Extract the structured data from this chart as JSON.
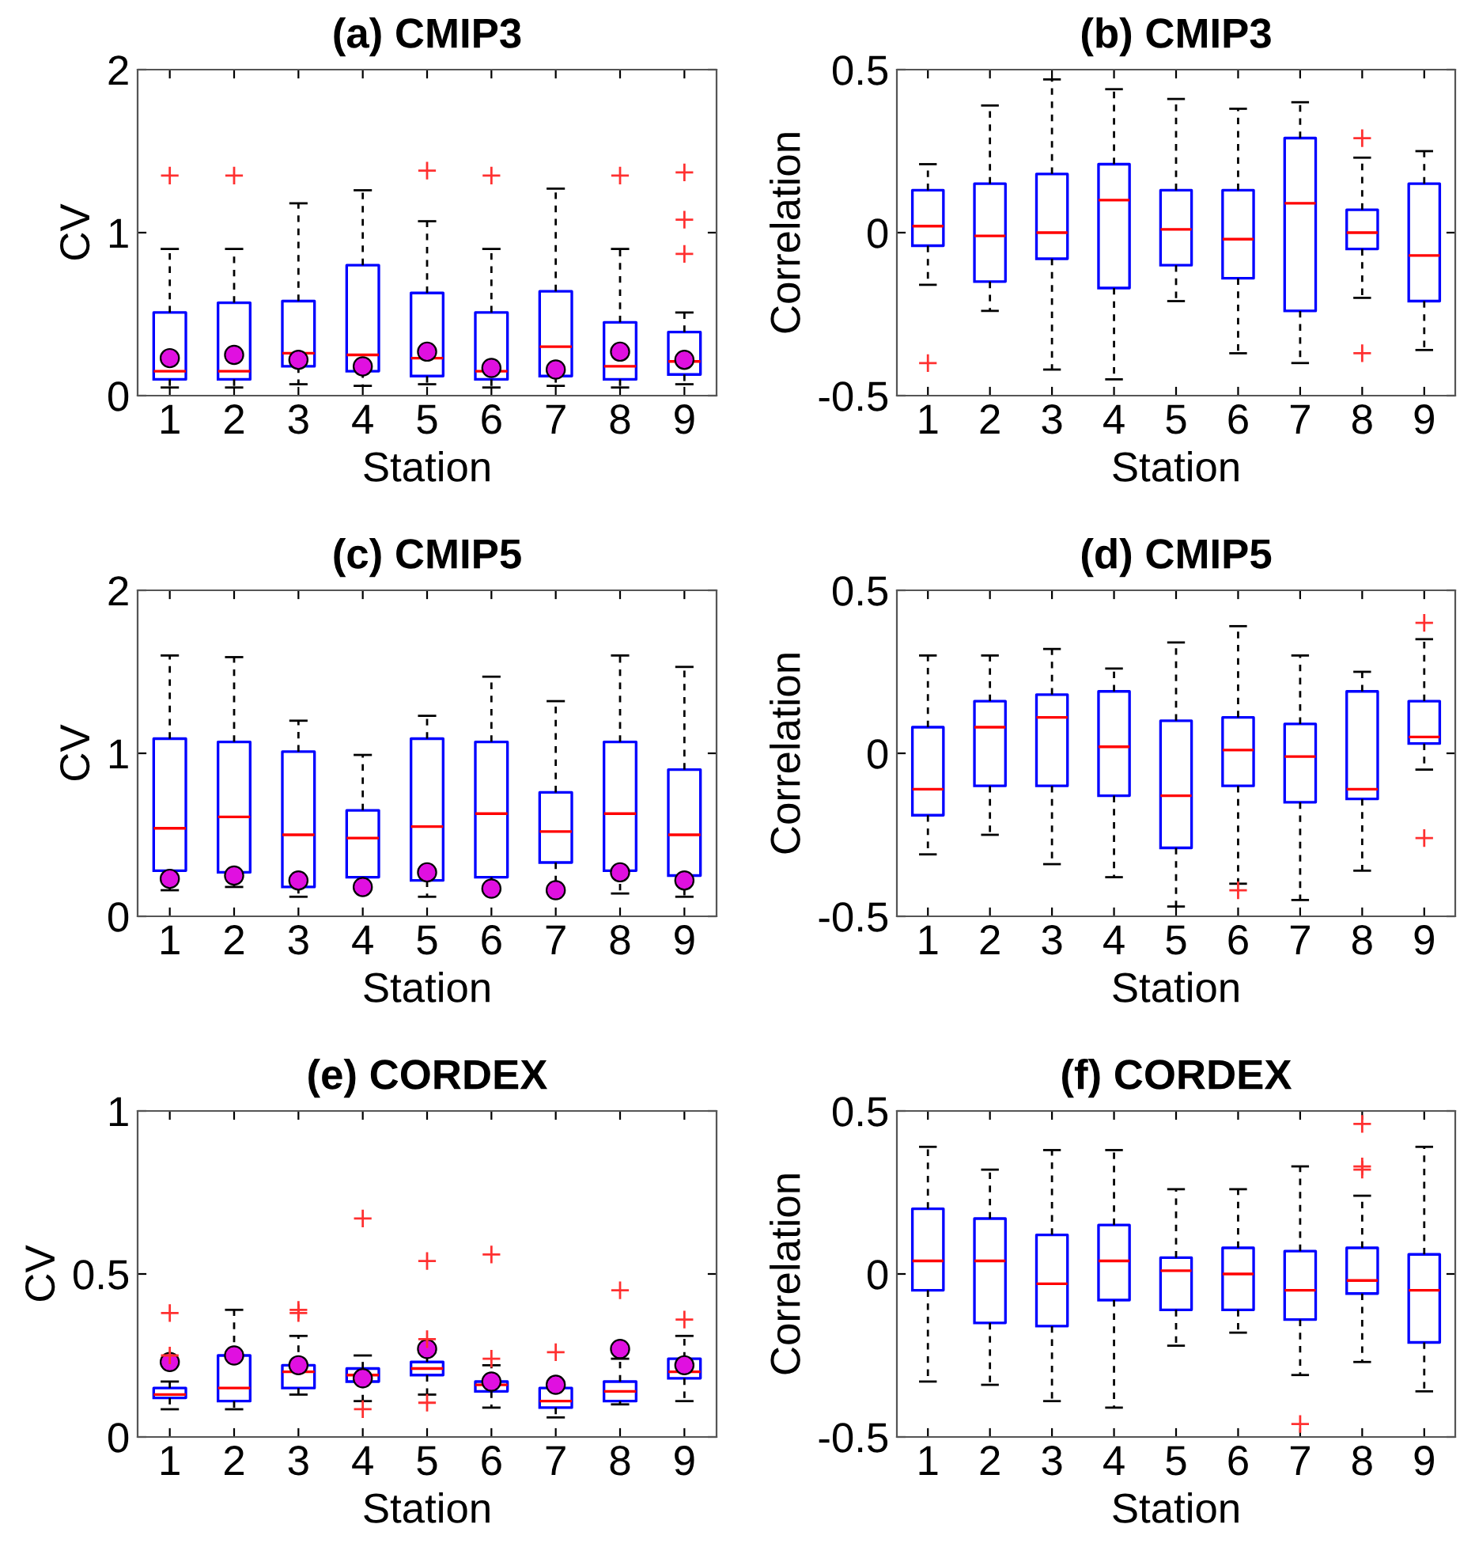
{
  "chart_data": [
    {
      "type": "box",
      "title": "(a) CMIP3",
      "xlabel": "Station",
      "ylabel": "CV",
      "categories": [
        "1",
        "2",
        "3",
        "4",
        "5",
        "6",
        "7",
        "8",
        "9"
      ],
      "color": "#0000ff",
      "ylim": [
        0,
        2
      ],
      "yticks": [
        0,
        1,
        2
      ],
      "boxes": [
        {
          "low": 0.05,
          "q1": 0.1,
          "median": 0.15,
          "q3": 0.51,
          "high": 0.9,
          "outliers": [
            1.35
          ]
        },
        {
          "low": 0.05,
          "q1": 0.1,
          "median": 0.15,
          "q3": 0.57,
          "high": 0.9,
          "outliers": [
            1.35
          ]
        },
        {
          "low": 0.07,
          "q1": 0.18,
          "median": 0.26,
          "q3": 0.58,
          "high": 1.18
        },
        {
          "low": 0.06,
          "q1": 0.15,
          "median": 0.25,
          "q3": 0.8,
          "high": 1.26
        },
        {
          "low": 0.07,
          "q1": 0.12,
          "median": 0.23,
          "q3": 0.63,
          "high": 1.07,
          "outliers": [
            1.38
          ]
        },
        {
          "low": 0.05,
          "q1": 0.1,
          "median": 0.15,
          "q3": 0.51,
          "high": 0.9,
          "outliers": [
            1.35
          ]
        },
        {
          "low": 0.06,
          "q1": 0.12,
          "median": 0.3,
          "q3": 0.64,
          "high": 1.27
        },
        {
          "low": 0.05,
          "q1": 0.1,
          "median": 0.18,
          "q3": 0.45,
          "high": 0.9,
          "outliers": [
            1.35
          ]
        },
        {
          "low": 0.07,
          "q1": 0.13,
          "median": 0.21,
          "q3": 0.39,
          "high": 0.51,
          "outliers": [
            1.37,
            1.08,
            0.87
          ]
        }
      ],
      "series": [
        {
          "type": "scatter",
          "marker": "circle",
          "color": "#e010e0",
          "x": [
            "1",
            "2",
            "3",
            "4",
            "5",
            "6",
            "7",
            "8",
            "9"
          ],
          "values": [
            0.23,
            0.25,
            0.22,
            0.18,
            0.27,
            0.17,
            0.16,
            0.27,
            0.22
          ]
        }
      ]
    },
    {
      "type": "box",
      "title": "(b) CMIP3",
      "xlabel": "Station",
      "ylabel": "Correlation",
      "categories": [
        "1",
        "2",
        "3",
        "4",
        "5",
        "6",
        "7",
        "8",
        "9"
      ],
      "color": "#0000ff",
      "ylim": [
        -0.5,
        0.5
      ],
      "yticks": [
        -0.5,
        0,
        0.5
      ],
      "boxes": [
        {
          "low": -0.16,
          "q1": -0.04,
          "median": 0.02,
          "q3": 0.13,
          "high": 0.21,
          "outliers": [
            -0.4
          ]
        },
        {
          "low": -0.24,
          "q1": -0.15,
          "median": -0.01,
          "q3": 0.15,
          "high": 0.39
        },
        {
          "low": -0.42,
          "q1": -0.08,
          "median": 0.0,
          "q3": 0.18,
          "high": 0.47
        },
        {
          "low": -0.45,
          "q1": -0.17,
          "median": 0.1,
          "q3": 0.21,
          "high": 0.44
        },
        {
          "low": -0.21,
          "q1": -0.1,
          "median": 0.01,
          "q3": 0.13,
          "high": 0.41
        },
        {
          "low": -0.37,
          "q1": -0.14,
          "median": -0.02,
          "q3": 0.13,
          "high": 0.38
        },
        {
          "low": -0.4,
          "q1": -0.24,
          "median": 0.09,
          "q3": 0.29,
          "high": 0.4
        },
        {
          "low": -0.2,
          "q1": -0.05,
          "median": 0.0,
          "q3": 0.07,
          "high": 0.23,
          "outliers": [
            0.29,
            -0.37
          ]
        },
        {
          "low": -0.36,
          "q1": -0.21,
          "median": -0.07,
          "q3": 0.15,
          "high": 0.25
        }
      ]
    },
    {
      "type": "box",
      "title": "(c) CMIP5",
      "xlabel": "Station",
      "ylabel": "CV",
      "categories": [
        "1",
        "2",
        "3",
        "4",
        "5",
        "6",
        "7",
        "8",
        "9"
      ],
      "color": "#0000ff",
      "ylim": [
        0,
        2
      ],
      "yticks": [
        0,
        1,
        2
      ],
      "boxes": [
        {
          "low": 0.16,
          "q1": 0.28,
          "median": 0.54,
          "q3": 1.09,
          "high": 1.6
        },
        {
          "low": 0.18,
          "q1": 0.27,
          "median": 0.61,
          "q3": 1.07,
          "high": 1.59
        },
        {
          "low": 0.12,
          "q1": 0.18,
          "median": 0.5,
          "q3": 1.01,
          "high": 1.2
        },
        {
          "low": 0.17,
          "q1": 0.24,
          "median": 0.48,
          "q3": 0.65,
          "high": 0.99
        },
        {
          "low": 0.12,
          "q1": 0.22,
          "median": 0.55,
          "q3": 1.09,
          "high": 1.23
        },
        {
          "low": 0.17,
          "q1": 0.24,
          "median": 0.63,
          "q3": 1.07,
          "high": 1.47
        },
        {
          "low": 0.17,
          "q1": 0.33,
          "median": 0.52,
          "q3": 0.76,
          "high": 1.32
        },
        {
          "low": 0.14,
          "q1": 0.28,
          "median": 0.63,
          "q3": 1.07,
          "high": 1.6
        },
        {
          "low": 0.12,
          "q1": 0.25,
          "median": 0.5,
          "q3": 0.9,
          "high": 1.53
        }
      ],
      "series": [
        {
          "type": "scatter",
          "marker": "circle",
          "color": "#e010e0",
          "x": [
            "1",
            "2",
            "3",
            "4",
            "5",
            "6",
            "7",
            "8",
            "9"
          ],
          "values": [
            0.23,
            0.25,
            0.22,
            0.18,
            0.27,
            0.17,
            0.16,
            0.27,
            0.22
          ]
        }
      ]
    },
    {
      "type": "box",
      "title": "(d) CMIP5",
      "xlabel": "Station",
      "ylabel": "Correlation",
      "categories": [
        "1",
        "2",
        "3",
        "4",
        "5",
        "6",
        "7",
        "8",
        "9"
      ],
      "color": "#0000ff",
      "ylim": [
        -0.5,
        0.5
      ],
      "yticks": [
        -0.5,
        0,
        0.5
      ],
      "boxes": [
        {
          "low": -0.31,
          "q1": -0.19,
          "median": -0.11,
          "q3": 0.08,
          "high": 0.3
        },
        {
          "low": -0.25,
          "q1": -0.1,
          "median": 0.08,
          "q3": 0.16,
          "high": 0.3
        },
        {
          "low": -0.34,
          "q1": -0.1,
          "median": 0.11,
          "q3": 0.18,
          "high": 0.32
        },
        {
          "low": -0.38,
          "q1": -0.13,
          "median": 0.02,
          "q3": 0.19,
          "high": 0.26
        },
        {
          "low": -0.47,
          "q1": -0.29,
          "median": -0.13,
          "q3": 0.1,
          "high": 0.34
        },
        {
          "low": -0.4,
          "q1": -0.1,
          "median": 0.01,
          "q3": 0.11,
          "high": 0.39,
          "outliers": [
            -0.42
          ]
        },
        {
          "low": -0.45,
          "q1": -0.15,
          "median": -0.01,
          "q3": 0.09,
          "high": 0.3
        },
        {
          "low": -0.36,
          "q1": -0.14,
          "median": -0.11,
          "q3": 0.19,
          "high": 0.25
        },
        {
          "low": -0.05,
          "q1": 0.03,
          "median": 0.05,
          "q3": 0.16,
          "high": 0.35,
          "outliers": [
            0.4,
            -0.26
          ]
        }
      ]
    },
    {
      "type": "box",
      "title": "(e) CORDEX",
      "xlabel": "Station",
      "ylabel": "CV",
      "categories": [
        "1",
        "2",
        "3",
        "4",
        "5",
        "6",
        "7",
        "8",
        "9"
      ],
      "color": "#0000ff",
      "ylim": [
        0,
        1
      ],
      "yticks": [
        0,
        0.5,
        1
      ],
      "boxes": [
        {
          "low": 0.085,
          "q1": 0.12,
          "median": 0.13,
          "q3": 0.15,
          "high": 0.17,
          "outliers": [
            0.38,
            0.25
          ]
        },
        {
          "low": 0.085,
          "q1": 0.11,
          "median": 0.15,
          "q3": 0.25,
          "high": 0.39
        },
        {
          "low": 0.13,
          "q1": 0.15,
          "median": 0.2,
          "q3": 0.22,
          "high": 0.31,
          "outliers": [
            0.39,
            0.38
          ]
        },
        {
          "low": 0.11,
          "q1": 0.17,
          "median": 0.19,
          "q3": 0.21,
          "high": 0.25,
          "outliers": [
            0.67,
            0.085
          ]
        },
        {
          "low": 0.13,
          "q1": 0.19,
          "median": 0.21,
          "q3": 0.23,
          "high": 0.26,
          "outliers": [
            0.54,
            0.3,
            0.105
          ]
        },
        {
          "low": 0.09,
          "q1": 0.14,
          "median": 0.16,
          "q3": 0.17,
          "high": 0.22,
          "outliers": [
            0.56,
            0.24
          ]
        },
        {
          "low": 0.06,
          "q1": 0.09,
          "median": 0.11,
          "q3": 0.15,
          "high": 0.17,
          "outliers": [
            0.26
          ]
        },
        {
          "low": 0.1,
          "q1": 0.11,
          "median": 0.14,
          "q3": 0.17,
          "high": 0.24,
          "outliers": [
            0.45
          ]
        },
        {
          "low": 0.11,
          "q1": 0.18,
          "median": 0.2,
          "q3": 0.24,
          "high": 0.31,
          "outliers": [
            0.36
          ]
        }
      ],
      "series": [
        {
          "type": "scatter",
          "marker": "circle",
          "color": "#e010e0",
          "x": [
            "1",
            "2",
            "3",
            "4",
            "5",
            "6",
            "7",
            "8",
            "9"
          ],
          "values": [
            0.23,
            0.25,
            0.22,
            0.18,
            0.27,
            0.17,
            0.16,
            0.27,
            0.22
          ]
        }
      ]
    },
    {
      "type": "box",
      "title": "(f) CORDEX",
      "xlabel": "Station",
      "ylabel": "Correlation",
      "categories": [
        "1",
        "2",
        "3",
        "4",
        "5",
        "6",
        "7",
        "8",
        "9"
      ],
      "color": "#0000ff",
      "ylim": [
        -0.5,
        0.5
      ],
      "yticks": [
        -0.5,
        0,
        0.5
      ],
      "boxes": [
        {
          "low": -0.33,
          "q1": -0.05,
          "median": 0.04,
          "q3": 0.2,
          "high": 0.39
        },
        {
          "low": -0.34,
          "q1": -0.15,
          "median": 0.04,
          "q3": 0.17,
          "high": 0.32
        },
        {
          "low": -0.39,
          "q1": -0.16,
          "median": -0.03,
          "q3": 0.12,
          "high": 0.38
        },
        {
          "low": -0.41,
          "q1": -0.08,
          "median": 0.04,
          "q3": 0.15,
          "high": 0.38
        },
        {
          "low": -0.22,
          "q1": -0.11,
          "median": 0.01,
          "q3": 0.05,
          "high": 0.26
        },
        {
          "low": -0.18,
          "q1": -0.11,
          "median": 0.0,
          "q3": 0.08,
          "high": 0.26
        },
        {
          "low": -0.31,
          "q1": -0.14,
          "median": -0.05,
          "q3": 0.07,
          "high": 0.33,
          "outliers": [
            -0.46
          ]
        },
        {
          "low": -0.27,
          "q1": -0.06,
          "median": -0.02,
          "q3": 0.08,
          "high": 0.24,
          "outliers": [
            0.46,
            0.33,
            0.32
          ]
        },
        {
          "low": -0.36,
          "q1": -0.21,
          "median": -0.05,
          "q3": 0.06,
          "high": 0.39
        }
      ]
    }
  ]
}
